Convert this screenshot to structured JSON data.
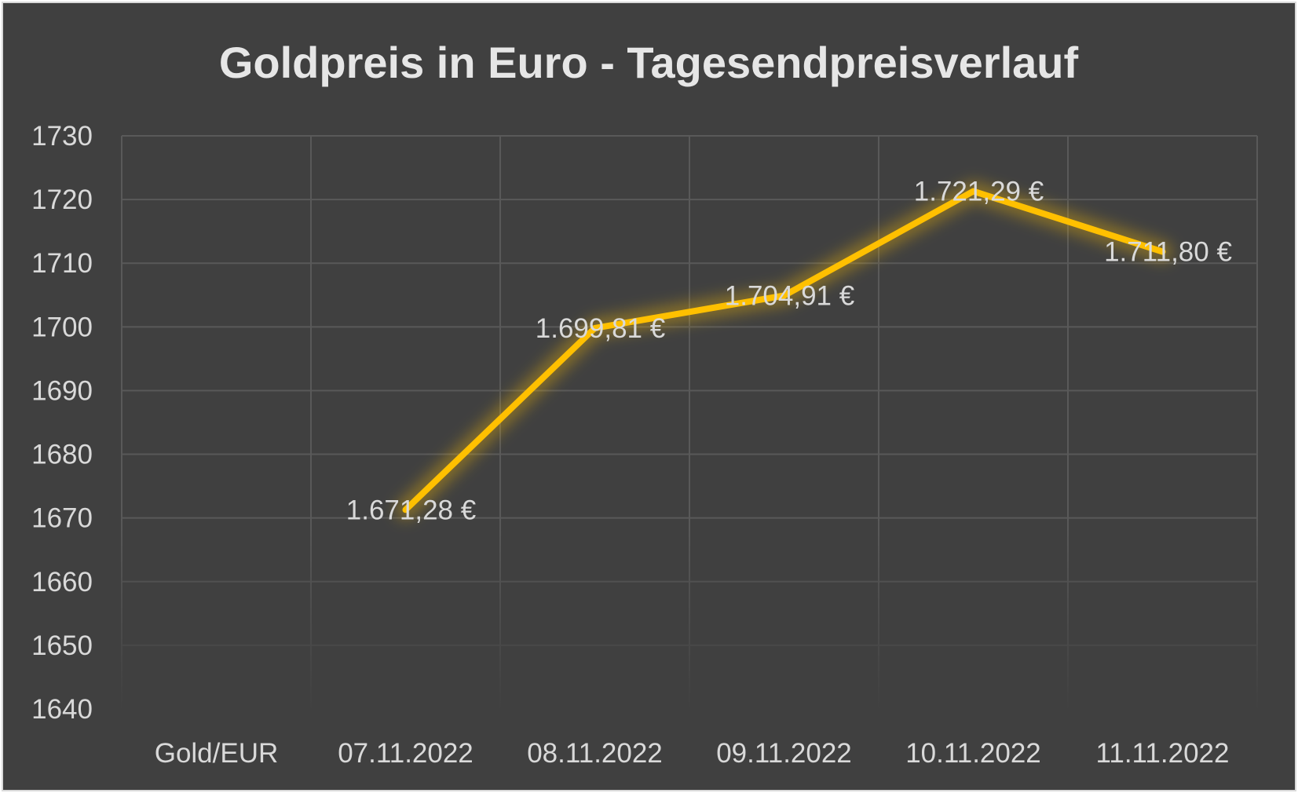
{
  "chart_data": {
    "type": "line",
    "title": "Goldpreis in Euro - Tagesendpreisverlauf",
    "xlabel": "",
    "ylabel": "",
    "categories": [
      "Gold/EUR",
      "07.11.2022",
      "08.11.2022",
      "09.11.2022",
      "10.11.2022",
      "11.11.2022"
    ],
    "series": [
      {
        "values": [
          null,
          1671.28,
          1699.81,
          1704.91,
          1721.29,
          1711.8
        ],
        "labels": [
          "",
          "1.671,28 €",
          "1.699,81 €",
          "1.704,91 €",
          "1.721,29 €",
          "1.711,80 €"
        ],
        "color": "#ffc000"
      }
    ],
    "ylim": [
      1640,
      1730
    ],
    "yticks": [
      "1640",
      "1650",
      "1660",
      "1670",
      "1680",
      "1690",
      "1700",
      "1710",
      "1720",
      "1730"
    ],
    "grid": true,
    "legend": "none",
    "colors": {
      "background": "#404040",
      "grid": "#595959",
      "text": "#d9d9d9",
      "line": "#ffc000"
    }
  }
}
